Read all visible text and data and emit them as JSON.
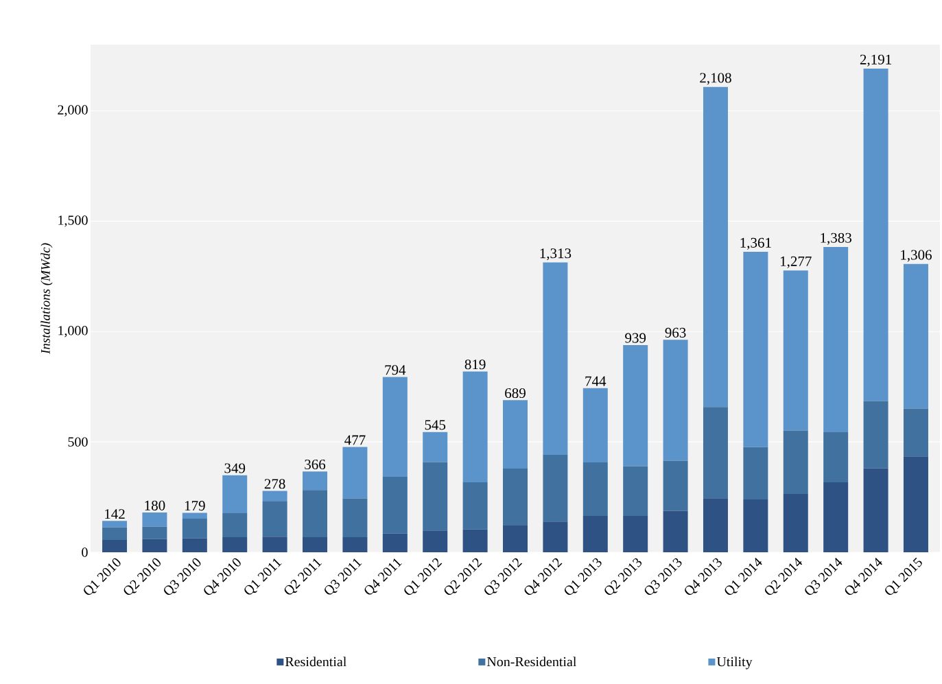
{
  "chart_data": {
    "type": "bar",
    "stacked": true,
    "ylabel": "Installations (MWdc)",
    "categories": [
      "Q1 2010",
      "Q2 2010",
      "Q3 2010",
      "Q4 2010",
      "Q1 2011",
      "Q2 2011",
      "Q3 2011",
      "Q4 2011",
      "Q1 2012",
      "Q2 2012",
      "Q3 2012",
      "Q4 2012",
      "Q1 2013",
      "Q2 2013",
      "Q3 2013",
      "Q4 2013",
      "Q1 2014",
      "Q2 2014",
      "Q3 2014",
      "Q4 2014",
      "Q1 2015"
    ],
    "series": [
      {
        "name": "Residential",
        "color": "#2e5283",
        "values": [
          56,
          60,
          63,
          68,
          71,
          68,
          68,
          85,
          99,
          103,
          121,
          139,
          165,
          165,
          188,
          245,
          239,
          264,
          317,
          381,
          434
        ]
      },
      {
        "name": "Non-Residential",
        "color": "#41729f",
        "values": [
          57,
          56,
          89,
          109,
          161,
          214,
          176,
          257,
          310,
          214,
          258,
          302,
          242,
          225,
          227,
          413,
          237,
          288,
          227,
          304,
          217
        ]
      },
      {
        "name": "Utility",
        "color": "#5b93cb",
        "values": [
          29,
          64,
          27,
          172,
          46,
          84,
          233,
          452,
          136,
          502,
          310,
          872,
          337,
          549,
          548,
          1450,
          885,
          725,
          839,
          1506,
          655
        ]
      }
    ],
    "totals": [
      "142",
      "180",
      "179",
      "349",
      "278",
      "366",
      "477",
      "794",
      "545",
      "819",
      "689",
      "1,313",
      "744",
      "939",
      "963",
      "2,108",
      "1,361",
      "1,277",
      "1,383",
      "2,191",
      "1,306"
    ],
    "ylim": [
      0,
      2300
    ],
    "yticks": [
      0,
      500,
      {
        "value": 1000,
        "label": "1,000"
      },
      {
        "value": 1500,
        "label": "1,500"
      },
      {
        "value": 2000,
        "label": "2,000"
      }
    ],
    "grid": "y",
    "legend": "bottom"
  }
}
